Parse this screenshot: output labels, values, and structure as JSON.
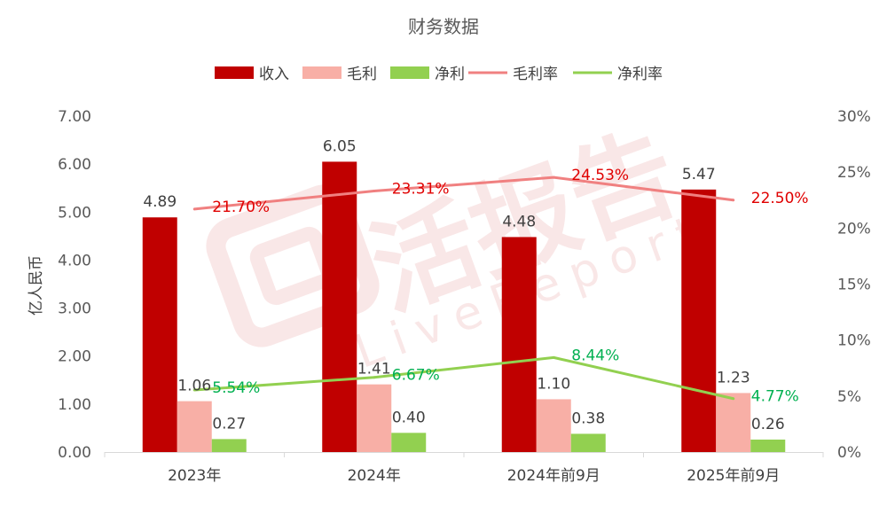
{
  "chart_data": {
    "type": "bar",
    "title": "财务数据",
    "xlabel": "",
    "ylabel": "亿人民币",
    "ylim": [
      0,
      7
    ],
    "y_ticks": [
      "0.00",
      "1.00",
      "2.00",
      "3.00",
      "4.00",
      "5.00",
      "6.00",
      "7.00"
    ],
    "y2lim": [
      0,
      30
    ],
    "y2_ticks": [
      "0%",
      "5%",
      "10%",
      "15%",
      "20%",
      "25%",
      "30%"
    ],
    "categories": [
      "2023年",
      "2024年",
      "2024年前9月",
      "2025年前9月"
    ],
    "legend_position": "top",
    "grid": false,
    "series": [
      {
        "name": "收入",
        "kind": "bar",
        "axis": "left",
        "color": "#C00000",
        "values": [
          4.89,
          6.05,
          4.48,
          5.47
        ],
        "labels": [
          "4.89",
          "6.05",
          "4.48",
          "5.47"
        ],
        "label_color": "#404040"
      },
      {
        "name": "毛利",
        "kind": "bar",
        "axis": "left",
        "color": "#F8AFA6",
        "values": [
          1.06,
          1.41,
          1.1,
          1.23
        ],
        "labels": [
          "1.06",
          "1.41",
          "1.10",
          "1.23"
        ],
        "label_color": "#404040"
      },
      {
        "name": "净利",
        "kind": "bar",
        "axis": "left",
        "color": "#92D050",
        "values": [
          0.27,
          0.4,
          0.38,
          0.26
        ],
        "labels": [
          "0.27",
          "0.40",
          "0.38",
          "0.26"
        ],
        "label_color": "#404040"
      },
      {
        "name": "毛利率",
        "kind": "line",
        "axis": "right",
        "color": "#F08080",
        "values": [
          21.7,
          23.31,
          24.53,
          22.5
        ],
        "labels": [
          "21.70%",
          "23.31%",
          "24.53%",
          "22.50%"
        ],
        "label_color": "#E00000"
      },
      {
        "name": "净利率",
        "kind": "line",
        "axis": "right",
        "color": "#92D050",
        "values": [
          5.54,
          6.67,
          8.44,
          4.77
        ],
        "labels": [
          "5.54%",
          "6.67%",
          "8.44%",
          "4.77%"
        ],
        "label_color": "#00B050"
      }
    ],
    "watermark": {
      "text": "活报告",
      "subtext": "LiveReport"
    }
  }
}
